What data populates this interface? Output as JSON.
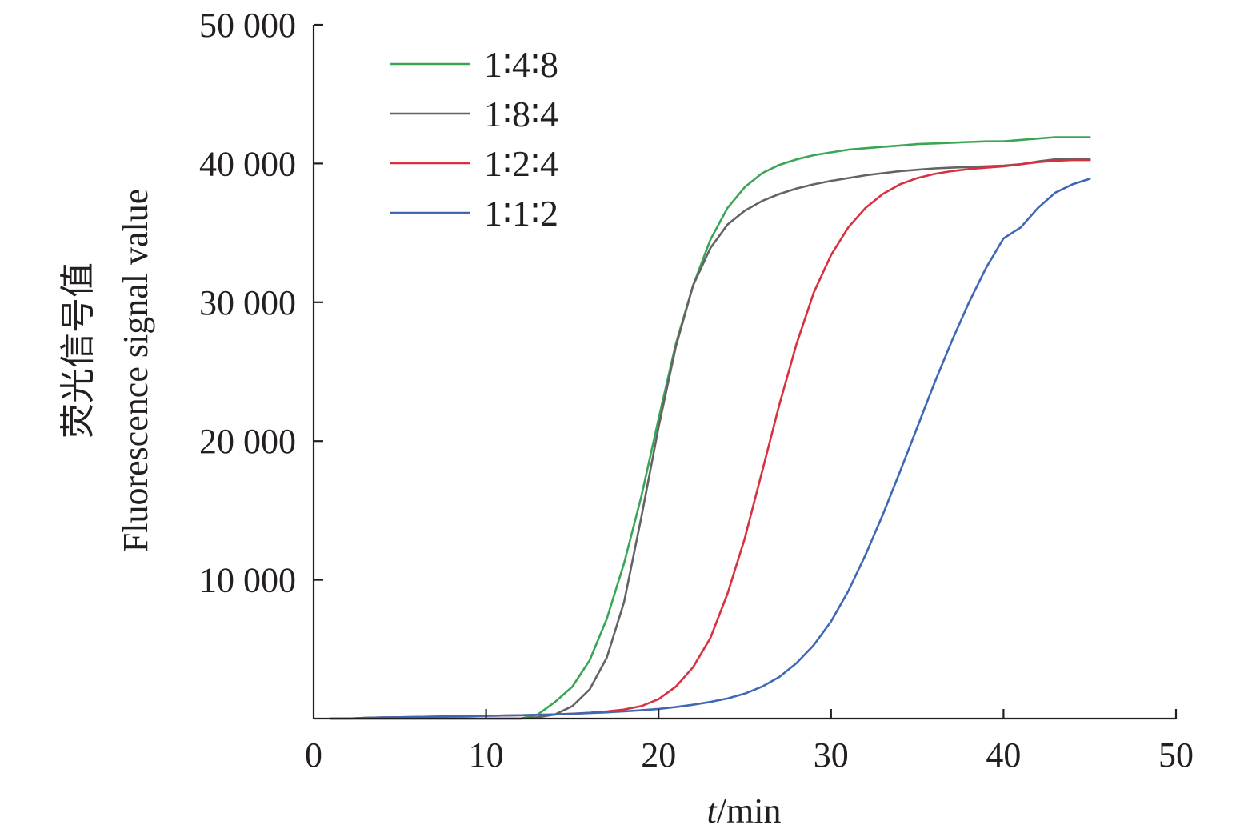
{
  "chart_data": {
    "type": "line",
    "xlabel_italic": "t",
    "xlabel_rest": "/min",
    "ylabel_zh": "荧光信号值",
    "ylabel_en": "Fluorescence signal value",
    "xlim": [
      0,
      50
    ],
    "ylim": [
      0,
      50000
    ],
    "x_ticks": [
      0,
      10,
      20,
      30,
      40,
      50
    ],
    "x_tick_labels": [
      "0",
      "10",
      "20",
      "30",
      "40",
      "50"
    ],
    "y_ticks": [
      10000,
      20000,
      30000,
      40000,
      50000
    ],
    "y_tick_labels": [
      "10 000",
      "20 000",
      "30 000",
      "40 000",
      "50 000"
    ],
    "grid": false,
    "legend_position": "top-left",
    "series": [
      {
        "name": "1∶4∶8",
        "color": "#3aa655",
        "x": [
          1,
          2,
          3,
          4,
          5,
          6,
          7,
          8,
          9,
          10,
          11,
          12,
          13,
          14,
          15,
          16,
          17,
          18,
          19,
          20,
          21,
          22,
          23,
          24,
          25,
          26,
          27,
          28,
          29,
          30,
          31,
          32,
          33,
          34,
          35,
          36,
          37,
          38,
          39,
          40,
          41,
          42,
          43,
          44,
          45
        ],
        "y": [
          0,
          0,
          0,
          0,
          0,
          0,
          0,
          0,
          0,
          0,
          0,
          0,
          300,
          1200,
          2300,
          4200,
          7200,
          11200,
          16000,
          21600,
          27000,
          31200,
          34500,
          36800,
          38300,
          39300,
          39900,
          40300,
          40600,
          40800,
          41000,
          41100,
          41200,
          41300,
          41400,
          41450,
          41500,
          41550,
          41600,
          41600,
          41700,
          41800,
          41900,
          41900,
          41900
        ]
      },
      {
        "name": "1∶8∶4",
        "color": "#636363",
        "x": [
          1,
          2,
          3,
          4,
          5,
          6,
          7,
          8,
          9,
          10,
          11,
          12,
          13,
          14,
          15,
          16,
          17,
          18,
          19,
          20,
          21,
          22,
          23,
          24,
          25,
          26,
          27,
          28,
          29,
          30,
          31,
          32,
          33,
          34,
          35,
          36,
          37,
          38,
          39,
          40,
          41,
          42,
          43,
          44,
          45
        ],
        "y": [
          0,
          0,
          0,
          0,
          0,
          0,
          0,
          0,
          0,
          0,
          0,
          0,
          100,
          300,
          900,
          2100,
          4400,
          8400,
          14500,
          21000,
          26800,
          31200,
          33900,
          35600,
          36600,
          37300,
          37800,
          38200,
          38500,
          38750,
          38950,
          39150,
          39300,
          39450,
          39550,
          39650,
          39700,
          39750,
          39800,
          39850,
          39950,
          40150,
          40300,
          40300,
          40300
        ]
      },
      {
        "name": "1∶2∶4",
        "color": "#d7303f",
        "x": [
          1,
          2,
          3,
          4,
          5,
          6,
          7,
          8,
          9,
          10,
          11,
          12,
          13,
          14,
          15,
          16,
          17,
          18,
          19,
          20,
          21,
          22,
          23,
          24,
          25,
          26,
          27,
          28,
          29,
          30,
          31,
          32,
          33,
          34,
          35,
          36,
          37,
          38,
          39,
          40,
          41,
          42,
          43,
          44,
          45
        ],
        "y": [
          0,
          0,
          50,
          80,
          100,
          120,
          140,
          160,
          180,
          200,
          220,
          240,
          270,
          300,
          350,
          420,
          520,
          650,
          900,
          1400,
          2300,
          3700,
          5800,
          9000,
          13000,
          17800,
          22600,
          27000,
          30700,
          33400,
          35400,
          36800,
          37800,
          38500,
          38950,
          39250,
          39450,
          39600,
          39700,
          39800,
          39950,
          40100,
          40200,
          40250,
          40250
        ]
      },
      {
        "name": "1∶1∶2",
        "color": "#3f68b4",
        "x": [
          1,
          2,
          3,
          4,
          5,
          6,
          7,
          8,
          9,
          10,
          11,
          12,
          13,
          14,
          15,
          16,
          17,
          18,
          19,
          20,
          21,
          22,
          23,
          24,
          25,
          26,
          27,
          28,
          29,
          30,
          31,
          32,
          33,
          34,
          35,
          36,
          37,
          38,
          39,
          40,
          41,
          42,
          43,
          44,
          45
        ],
        "y": [
          0,
          0,
          50,
          80,
          100,
          120,
          140,
          160,
          180,
          200,
          220,
          240,
          270,
          300,
          350,
          400,
          450,
          520,
          600,
          700,
          830,
          1000,
          1200,
          1450,
          1800,
          2300,
          3000,
          4000,
          5300,
          7000,
          9200,
          11800,
          14700,
          17800,
          21000,
          24200,
          27200,
          30000,
          32500,
          34600,
          35400,
          36800,
          37900,
          38500,
          38900
        ]
      }
    ]
  }
}
